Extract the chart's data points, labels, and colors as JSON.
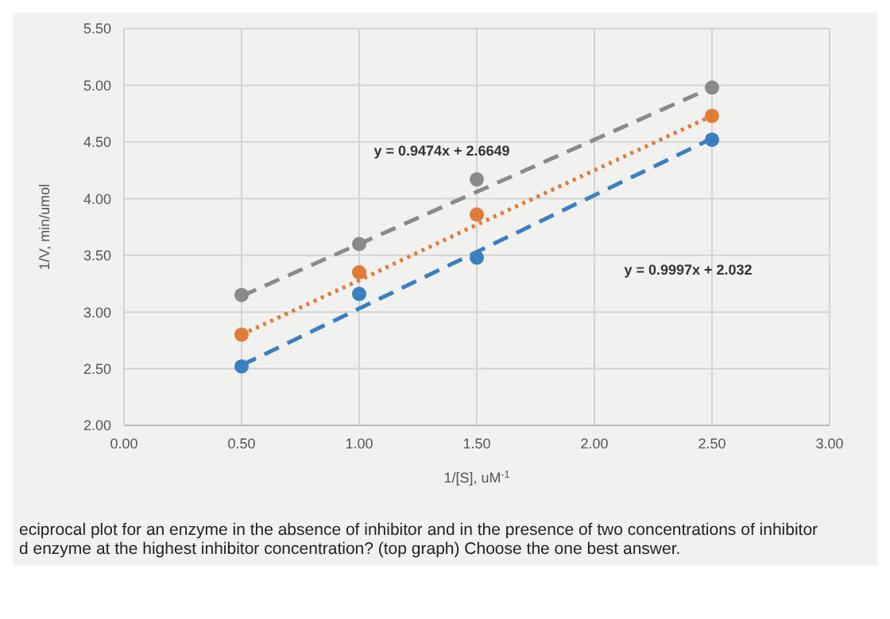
{
  "chart_data": {
    "type": "scatter",
    "xlabel": "1/[S], uM$^{-1}$",
    "ylabel": "1/V, min/umol",
    "xlim": [
      0,
      3
    ],
    "ylim": [
      2,
      5.5
    ],
    "xticks": [
      {
        "value": 0,
        "label": "0.00"
      },
      {
        "value": 0.5,
        "label": "0.50"
      },
      {
        "value": 1,
        "label": "1.00"
      },
      {
        "value": 1.5,
        "label": "1.50"
      },
      {
        "value": 2,
        "label": "2.00"
      },
      {
        "value": 2.5,
        "label": "2.50"
      },
      {
        "value": 3,
        "label": "3.00"
      }
    ],
    "yticks": [
      {
        "value": 2,
        "label": "2.00"
      },
      {
        "value": 2.5,
        "label": "2.50"
      },
      {
        "value": 3,
        "label": "3.00"
      },
      {
        "value": 3.5,
        "label": "3.50"
      },
      {
        "value": 4,
        "label": "4.00"
      },
      {
        "value": 4.5,
        "label": "4.50"
      },
      {
        "value": 5,
        "label": "5.00"
      },
      {
        "value": 5.5,
        "label": "5.50"
      }
    ],
    "grid": true,
    "legend": false,
    "x": [
      0.5,
      1,
      1.5,
      2.5
    ],
    "series": [
      {
        "color": "#8a8a8a",
        "marker": "circle",
        "values": [
          3.15,
          3.6,
          4.17,
          4.98
        ]
      },
      {
        "color": "#e07b39",
        "marker": "circle",
        "values": [
          2.8,
          3.35,
          3.86,
          4.73
        ]
      },
      {
        "color": "#3a7fc0",
        "marker": "circle",
        "values": [
          2.52,
          3.16,
          3.48,
          4.52
        ]
      },
      {
        "type": "line",
        "color": "#8a8a8a",
        "marker": "none",
        "line_style": "dashed",
        "values": [
          3.14,
          3.6,
          4.06,
          4.98
        ]
      },
      {
        "type": "line",
        "color": "#e07b39",
        "marker": "none",
        "line_style": "dotted",
        "values": [
          2.8,
          3.28,
          3.77,
          4.73
        ]
      },
      {
        "type": "line",
        "color": "#3a7fc0",
        "marker": "none",
        "line_style": "dashed",
        "values": [
          2.53,
          3.03,
          3.53,
          4.53
        ]
      }
    ],
    "annotations": [
      "y = 0.9474x + 2.6649",
      "y = 0.9997x + 2.032",
      "eciprocal plot for an enzyme in the absence of inhibitor and in the presence of two concentrations of inhibitor",
      "d enzyme at the highest inhibitor concentration? (top graph) Choose the one best answer."
    ]
  }
}
